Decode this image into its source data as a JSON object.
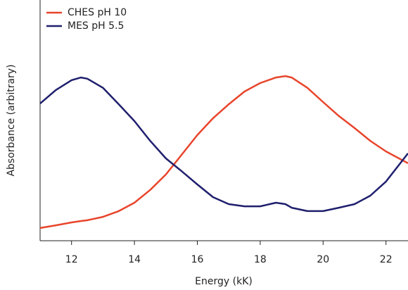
{
  "chart_data": {
    "type": "line",
    "x_label": "Energy (kK)",
    "y_label": "Absorbance (arbitrary)",
    "x": [
      11,
      11.5,
      12,
      12.3,
      12.5,
      13,
      13.5,
      14,
      14.5,
      15,
      15.5,
      16,
      16.5,
      17,
      17.5,
      18,
      18.5,
      18.8,
      19,
      19.5,
      20,
      20.5,
      21,
      21.5,
      22,
      22.7
    ],
    "series": [
      {
        "name": "CHES pH 10",
        "color": "#e8452c",
        "values": [
          0.053,
          0.064,
          0.076,
          0.082,
          0.085,
          0.099,
          0.123,
          0.158,
          0.211,
          0.275,
          0.357,
          0.439,
          0.509,
          0.567,
          0.62,
          0.655,
          0.678,
          0.684,
          0.678,
          0.635,
          0.576,
          0.518,
          0.468,
          0.415,
          0.371,
          0.322
        ]
      },
      {
        "name": "MES pH 5.5",
        "color": "#1f1f6e",
        "values": [
          0.57,
          0.626,
          0.667,
          0.678,
          0.673,
          0.635,
          0.567,
          0.497,
          0.415,
          0.342,
          0.289,
          0.234,
          0.181,
          0.152,
          0.143,
          0.143,
          0.158,
          0.152,
          0.137,
          0.123,
          0.123,
          0.137,
          0.152,
          0.187,
          0.246,
          0.363
        ]
      }
    ],
    "xlim": [
      11,
      22.7
    ],
    "xticks": [
      12,
      14,
      16,
      18,
      20,
      22
    ],
    "ylim": [
      0,
      1
    ],
    "legend": "top-left"
  }
}
